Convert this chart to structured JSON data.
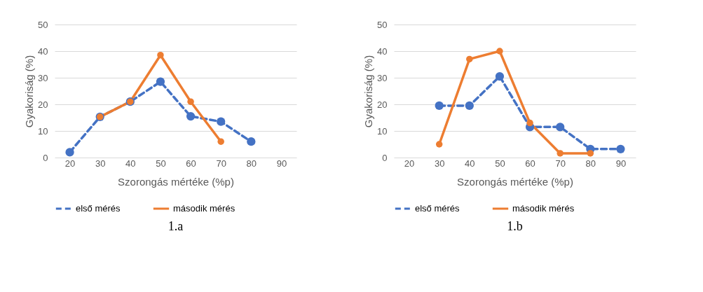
{
  "chart_data": [
    {
      "type": "line",
      "xlabel": "Szorongás mértéke (%p)",
      "ylabel": "Gyakoriság (%)",
      "categories": [
        "20",
        "30",
        "40",
        "50",
        "60",
        "70",
        "80",
        "90"
      ],
      "ylim": [
        0,
        50
      ],
      "yticks": [
        0,
        10,
        20,
        30,
        40,
        50
      ],
      "grid": "y",
      "legend": "bottom",
      "marker": "circle",
      "annotations": [
        "1.a"
      ],
      "series": [
        {
          "name": "első mérés",
          "color": "#4472c4",
          "line_style": "dashed",
          "values": [
            2,
            15.3,
            21,
            28.5,
            15.5,
            13.5,
            6,
            null
          ]
        },
        {
          "name": "második mérés",
          "color": "#ed7d31",
          "line_style": "solid",
          "values": [
            null,
            15.3,
            21,
            38.5,
            21,
            6,
            null,
            null
          ]
        }
      ]
    },
    {
      "type": "line",
      "xlabel": "Szorongás mértéke (%p)",
      "ylabel": "Gyakoriság (%)",
      "categories": [
        "20",
        "30",
        "40",
        "50",
        "60",
        "70",
        "80",
        "90"
      ],
      "ylim": [
        0,
        50
      ],
      "yticks": [
        0,
        10,
        20,
        30,
        40,
        50
      ],
      "grid": "y",
      "legend": "bottom",
      "marker": "circle",
      "annotations": [
        "1.b"
      ],
      "series": [
        {
          "name": "első mérés",
          "color": "#4472c4",
          "line_style": "dashed",
          "values": [
            null,
            19.5,
            19.5,
            30.5,
            11.5,
            11.5,
            3.2,
            3.2
          ]
        },
        {
          "name": "második mérés",
          "color": "#ed7d31",
          "line_style": "solid",
          "values": [
            null,
            5,
            37,
            40,
            13,
            1.6,
            1.6,
            null
          ]
        }
      ]
    }
  ]
}
